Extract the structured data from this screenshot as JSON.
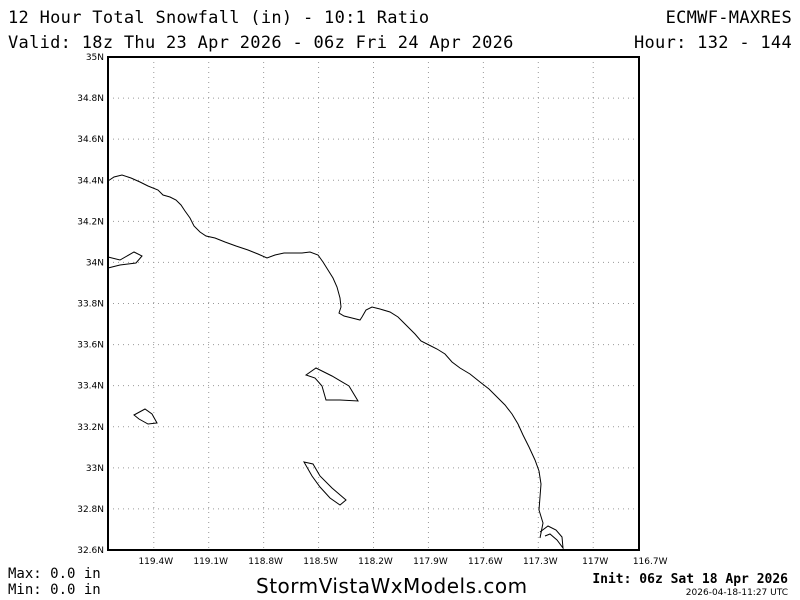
{
  "header": {
    "title": "12 Hour Total Snowfall (in) - 10:1 Ratio",
    "model": "ECMWF-MAXRES",
    "valid": "Valid: 18z Thu 23 Apr 2026 - 06z Fri 24 Apr 2026",
    "hour": "Hour: 132 - 144"
  },
  "map": {
    "lat_labels": [
      "35N",
      "34.8N",
      "34.6N",
      "34.4N",
      "34.2N",
      "34N",
      "33.8N",
      "33.6N",
      "33.4N",
      "33.2N",
      "33N",
      "32.8N",
      "32.6N"
    ],
    "lon_labels": [
      "119.4W",
      "119.1W",
      "118.8W",
      "118.5W",
      "118.2W",
      "117.9W",
      "117.6W",
      "117.3W",
      "117W",
      "116.7W"
    ],
    "lat_range": [
      32.6,
      35.0
    ],
    "lon_range": [
      -119.65,
      -116.75
    ],
    "grid": true
  },
  "footer": {
    "max": "Max: 0.0 in",
    "min": "Min: 0.0 in",
    "site": "StormVistaWxModels.com",
    "init": "Init: 06z Sat 18 Apr 2026",
    "stamp": "2026-04-18-11:27 UTC"
  }
}
